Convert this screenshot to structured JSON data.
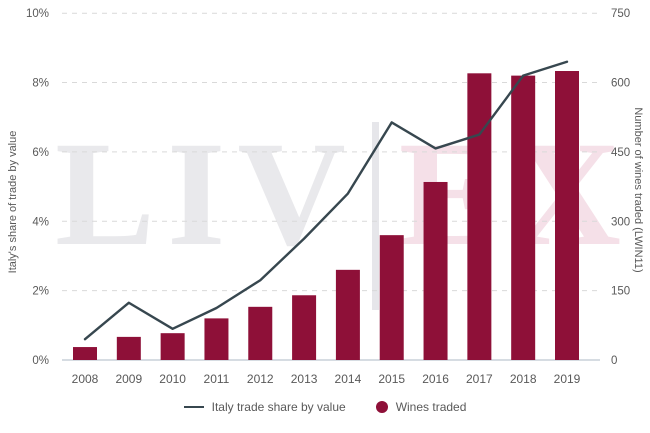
{
  "watermark": {
    "left": "LIV",
    "divider": "",
    "right": "EX"
  },
  "colors": {
    "bar": "#8e1038",
    "line": "#37474f",
    "grid": "#d9d9d9",
    "axis_line": "#c8d1d8",
    "tick_text": "#595959",
    "legend_text": "#595959",
    "watermark_gray": "#e9e9ec",
    "watermark_pink": "#f5e0e8"
  },
  "chart_data": {
    "type": "combo",
    "title": "",
    "categories": [
      "2008",
      "2009",
      "2010",
      "2011",
      "2012",
      "2013",
      "2014",
      "2015",
      "2016",
      "2017",
      "2018",
      "2019"
    ],
    "series": [
      {
        "name": "Italy trade share by value",
        "type": "line",
        "axis": "left",
        "unit": "%",
        "values": [
          0.6,
          1.65,
          0.9,
          1.5,
          2.3,
          3.5,
          4.8,
          6.85,
          6.1,
          6.5,
          8.2,
          8.6
        ]
      },
      {
        "name": "Wines traded",
        "type": "bar",
        "axis": "right",
        "values": [
          28,
          50,
          58,
          90,
          115,
          140,
          195,
          270,
          385,
          620,
          615,
          625
        ]
      }
    ],
    "left_axis": {
      "label": "Italy's share of trade by value",
      "tick_labels": [
        "0%",
        "2%",
        "4%",
        "6%",
        "8%",
        "10%"
      ],
      "tick_values": [
        0,
        2,
        4,
        6,
        8,
        10
      ],
      "range": [
        0,
        10
      ]
    },
    "right_axis": {
      "label": "Number of wines traded (LWIN11)",
      "tick_labels": [
        "0",
        "150",
        "300",
        "450",
        "600",
        "750"
      ],
      "tick_values": [
        0,
        150,
        300,
        450,
        600,
        750
      ],
      "range": [
        0,
        750
      ]
    },
    "legend": [
      {
        "label": "Italy trade share by value",
        "swatch": "line"
      },
      {
        "label": "Wines traded",
        "swatch": "circle"
      }
    ],
    "grid": "horizontal-dashed",
    "legend_position": "bottom-center"
  }
}
